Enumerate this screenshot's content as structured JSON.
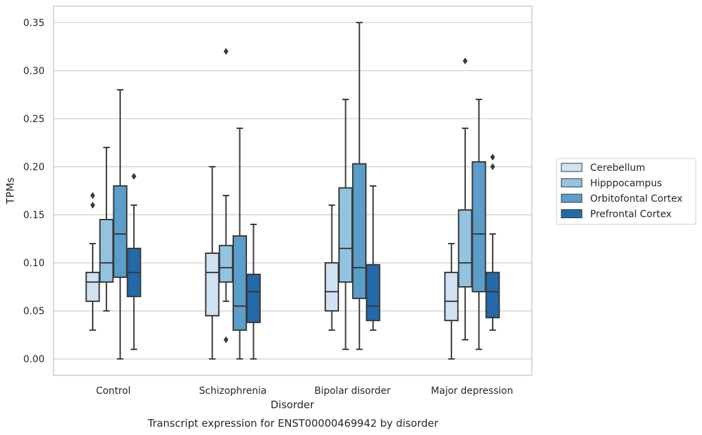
{
  "caption": "Transcript expression for ENST00000469942 by disorder",
  "chart_data": {
    "type": "boxplot",
    "xlabel": "Disorder",
    "ylabel": "TPMs",
    "ylim": [
      -0.017,
      0.367
    ],
    "yticks": [
      0.0,
      0.05,
      0.1,
      0.15,
      0.2,
      0.25,
      0.3,
      0.35
    ],
    "ytick_labels": [
      "0.00",
      "0.05",
      "0.10",
      "0.15",
      "0.20",
      "0.25",
      "0.30",
      "0.35"
    ],
    "grid": "horizontal",
    "legend_position": "right",
    "categories": [
      "Control",
      "Schizophrenia",
      "Bipolar disorder",
      "Major depression"
    ],
    "series": [
      {
        "name": "Cerebellum",
        "color": "#d0e1f1",
        "boxes": [
          {
            "whisker_low": 0.03,
            "q1": 0.06,
            "median": 0.08,
            "q3": 0.09,
            "whisker_high": 0.12,
            "outliers": [
              0.16,
              0.17
            ]
          },
          {
            "whisker_low": 0.0,
            "q1": 0.045,
            "median": 0.09,
            "q3": 0.11,
            "whisker_high": 0.2,
            "outliers": []
          },
          {
            "whisker_low": 0.03,
            "q1": 0.05,
            "median": 0.07,
            "q3": 0.1,
            "whisker_high": 0.16,
            "outliers": []
          },
          {
            "whisker_low": 0.0,
            "q1": 0.04,
            "median": 0.06,
            "q3": 0.09,
            "whisker_high": 0.12,
            "outliers": []
          }
        ]
      },
      {
        "name": "Hipppocampus",
        "color": "#94c3df",
        "boxes": [
          {
            "whisker_low": 0.05,
            "q1": 0.08,
            "median": 0.1,
            "q3": 0.145,
            "whisker_high": 0.22,
            "outliers": []
          },
          {
            "whisker_low": 0.06,
            "q1": 0.08,
            "median": 0.095,
            "q3": 0.118,
            "whisker_high": 0.17,
            "outliers": [
              0.02,
              0.32
            ]
          },
          {
            "whisker_low": 0.01,
            "q1": 0.08,
            "median": 0.115,
            "q3": 0.178,
            "whisker_high": 0.27,
            "outliers": []
          },
          {
            "whisker_low": 0.02,
            "q1": 0.075,
            "median": 0.1,
            "q3": 0.155,
            "whisker_high": 0.24,
            "outliers": [
              0.31
            ]
          }
        ]
      },
      {
        "name": "Orbitofontal Cortex",
        "color": "#5a9ec9",
        "boxes": [
          {
            "whisker_low": 0.0,
            "q1": 0.085,
            "median": 0.13,
            "q3": 0.18,
            "whisker_high": 0.28,
            "outliers": []
          },
          {
            "whisker_low": 0.0,
            "q1": 0.03,
            "median": 0.055,
            "q3": 0.128,
            "whisker_high": 0.24,
            "outliers": []
          },
          {
            "whisker_low": 0.01,
            "q1": 0.063,
            "median": 0.095,
            "q3": 0.203,
            "whisker_high": 0.35,
            "outliers": []
          },
          {
            "whisker_low": 0.01,
            "q1": 0.07,
            "median": 0.13,
            "q3": 0.205,
            "whisker_high": 0.27,
            "outliers": []
          }
        ]
      },
      {
        "name": "Prefrontal Cortex",
        "color": "#2469a8",
        "boxes": [
          {
            "whisker_low": 0.01,
            "q1": 0.065,
            "median": 0.09,
            "q3": 0.115,
            "whisker_high": 0.16,
            "outliers": [
              0.19
            ]
          },
          {
            "whisker_low": 0.0,
            "q1": 0.038,
            "median": 0.07,
            "q3": 0.088,
            "whisker_high": 0.14,
            "outliers": []
          },
          {
            "whisker_low": 0.03,
            "q1": 0.04,
            "median": 0.055,
            "q3": 0.098,
            "whisker_high": 0.18,
            "outliers": []
          },
          {
            "whisker_low": 0.03,
            "q1": 0.043,
            "median": 0.07,
            "q3": 0.09,
            "whisker_high": 0.13,
            "outliers": [
              0.2,
              0.21
            ]
          }
        ]
      }
    ]
  }
}
